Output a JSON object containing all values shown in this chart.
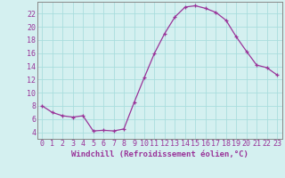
{
  "x": [
    0,
    1,
    2,
    3,
    4,
    5,
    6,
    7,
    8,
    9,
    10,
    11,
    12,
    13,
    14,
    15,
    16,
    17,
    18,
    19,
    20,
    21,
    22,
    23
  ],
  "y": [
    8,
    7,
    6.5,
    6.3,
    6.5,
    4.2,
    4.3,
    4.2,
    4.5,
    8.5,
    12.3,
    16.0,
    19.0,
    21.5,
    23.0,
    23.2,
    22.8,
    22.2,
    21.0,
    18.5,
    16.3,
    14.2,
    13.8,
    12.7
  ],
  "line_color": "#993399",
  "marker": "+",
  "marker_size": 3,
  "bg_color": "#d4f0f0",
  "grid_color": "#aadddd",
  "xlabel": "Windchill (Refroidissement éolien,°C)",
  "ylabel_ticks": [
    4,
    6,
    8,
    10,
    12,
    14,
    16,
    18,
    20,
    22
  ],
  "xlim": [
    -0.5,
    23.5
  ],
  "ylim": [
    3.0,
    23.8
  ],
  "xticks": [
    0,
    1,
    2,
    3,
    4,
    5,
    6,
    7,
    8,
    9,
    10,
    11,
    12,
    13,
    14,
    15,
    16,
    17,
    18,
    19,
    20,
    21,
    22,
    23
  ],
  "xlabel_fontsize": 6.5,
  "tick_fontsize": 6.0,
  "tick_color": "#993399",
  "label_color": "#993399",
  "spine_color": "#888888"
}
